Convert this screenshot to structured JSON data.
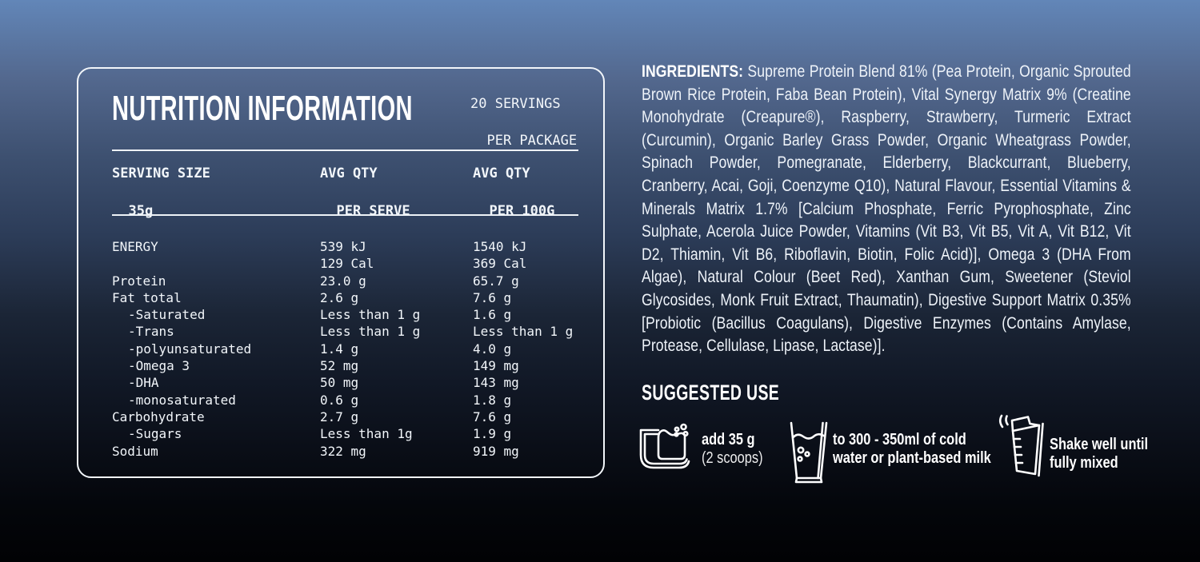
{
  "colors": {
    "background_top": "#6286b8",
    "background_mid": "#2c3c58",
    "background_bottom": "#010204",
    "text": "#f2f6fa",
    "panel_border": "#f2f6fa"
  },
  "nutrition_panel": {
    "title": "NUTRITION INFORMATION",
    "servings": {
      "line1": "20 SERVINGS",
      "line2": "PER PACKAGE"
    },
    "columns": {
      "serving_size": {
        "line1": "SERVING SIZE",
        "line2": "35g"
      },
      "per_serve": {
        "line1": "AVG QTY",
        "line2": "PER SERVE"
      },
      "per_100g": {
        "line1": "AVG QTY",
        "line2": "PER 100G"
      }
    },
    "rows": [
      {
        "label": "ENERGY",
        "serve": "539 kJ",
        "per100": "1540 kJ",
        "indent": false
      },
      {
        "label": "",
        "serve": "129 Cal",
        "per100": "369 Cal",
        "indent": false
      },
      {
        "label": "Protein",
        "serve": "23.0 g",
        "per100": "65.7 g",
        "indent": false
      },
      {
        "label": "Fat total",
        "serve": "2.6 g",
        "per100": "7.6 g",
        "indent": false
      },
      {
        "label": "-Saturated",
        "serve": "Less than 1 g",
        "per100": "1.6 g",
        "indent": true
      },
      {
        "label": "-Trans",
        "serve": "Less than 1 g",
        "per100": "Less than 1 g",
        "indent": true
      },
      {
        "label": "-polyunsaturated",
        "serve": "1.4 g",
        "per100": "4.0 g",
        "indent": true
      },
      {
        "label": "-Omega 3",
        "serve": "52 mg",
        "per100": "149 mg",
        "indent": true
      },
      {
        "label": "-DHA",
        "serve": "50 mg",
        "per100": "143 mg",
        "indent": true
      },
      {
        "label": "-monosaturated",
        "serve": "0.6 g",
        "per100": "1.8 g",
        "indent": true
      },
      {
        "label": "Carbohydrate",
        "serve": "2.7 g",
        "per100": "7.6 g",
        "indent": false
      },
      {
        "label": "-Sugars",
        "serve": "Less than 1g",
        "per100": "1.9 g",
        "indent": true
      },
      {
        "label": "Sodium",
        "serve": "322 mg",
        "per100": "919 mg",
        "indent": false
      }
    ]
  },
  "ingredients": {
    "label": "INGREDIENTS:",
    "text": " Supreme Protein Blend 81% (Pea Protein, Organic Sprouted Brown Rice Protein, Faba Bean Protein), Vital Synergy Matrix 9% (Creatine Monohydrate (Creapure®), Raspberry, Strawberry, Turmeric Extract (Curcumin), Organic Barley Grass Powder, Organic Wheatgrass Powder, Spinach Powder, Pomegranate, Elderberry, Blackcurrant, Blueberry, Cranberry, Acai, Goji, Coenzyme Q10), Natural Flavour, Essential Vitamins & Minerals Matrix 1.7% [Calcium Phosphate, Ferric Pyrophosphate, Zinc Sulphate, Acerola Juice Powder, Vitamins (Vit B3, Vit B5, Vit A, Vit B12, Vit D2, Thiamin, Vit B6, Riboflavin, Biotin, Folic Acid)], Omega 3 (DHA From Algae), Natural Colour (Beet Red), Xanthan Gum, Sweetener (Steviol Glycosides, Monk Fruit Extract, Thaumatin), Digestive Support Matrix 0.35% [Probiotic (Bacillus Coagulans), Digestive Enzymes (Contains Amylase, Protease, Cellulase, Lipase, Lactase)]."
  },
  "suggested_use": {
    "title": "SUGGESTED USE",
    "items": [
      {
        "icon": "scoop-icon",
        "line1": "add 35 g",
        "line2": "(2 scoops)"
      },
      {
        "icon": "glass-icon",
        "line1": "to 300 - 350ml of cold",
        "line2": "water or plant-based milk"
      },
      {
        "icon": "shaker-icon",
        "line1": "Shake well until",
        "line2": "fully mixed"
      }
    ]
  }
}
